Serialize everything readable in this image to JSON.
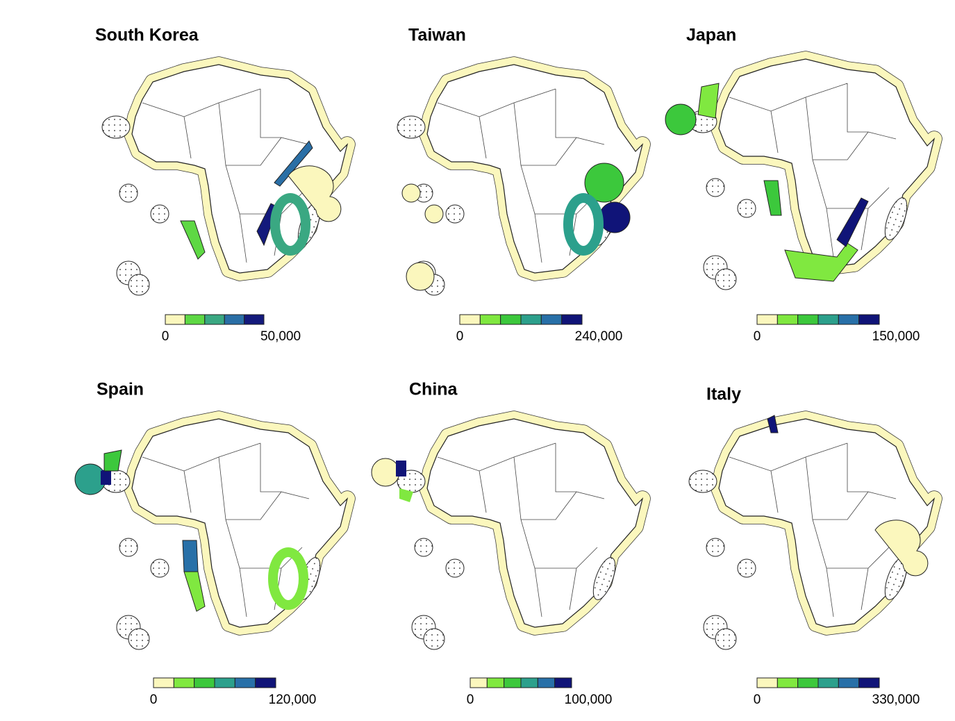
{
  "panels": [
    {
      "title": "South Korea",
      "legend": {
        "min_label": "0",
        "max_label": "50,000",
        "colors": [
          "#fbf7bd",
          "#5ed844",
          "#3aa882",
          "#2a6fa6",
          "#141a7c"
        ]
      }
    },
    {
      "title": "Taiwan",
      "legend": {
        "min_label": "0",
        "max_label": "240,000",
        "colors": [
          "#fbf7bd",
          "#80e840",
          "#3cc83c",
          "#2ca08c",
          "#2870a8",
          "#101478"
        ]
      }
    },
    {
      "title": "Japan",
      "legend": {
        "min_label": "0",
        "max_label": "150,000",
        "colors": [
          "#fbf7bd",
          "#80e840",
          "#3cc83c",
          "#2ca08c",
          "#2870a8",
          "#101478"
        ]
      }
    },
    {
      "title": "Spain",
      "legend": {
        "min_label": "0",
        "max_label": "120,000",
        "colors": [
          "#fbf7bd",
          "#80e840",
          "#3cc83c",
          "#2ca08c",
          "#2870a8",
          "#101478"
        ]
      }
    },
    {
      "title": "China",
      "legend": {
        "min_label": "0",
        "max_label": "100,000",
        "colors": [
          "#fbf7bd",
          "#80e840",
          "#3cc83c",
          "#2ca08c",
          "#2870a8",
          "#101478"
        ]
      }
    },
    {
      "title": "Italy",
      "legend": {
        "min_label": "0",
        "max_label": "330,000",
        "colors": [
          "#fbf7bd",
          "#80e840",
          "#3cc83c",
          "#2ca08c",
          "#2870a8",
          "#101478"
        ]
      }
    }
  ]
}
